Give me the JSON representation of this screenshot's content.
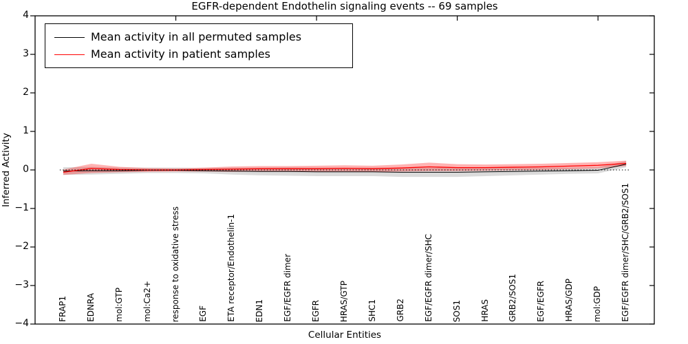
{
  "chart_data": {
    "type": "line",
    "title": "EGFR-dependent Endothelin signaling events -- 69 samples",
    "xlabel": "Cellular Entities",
    "ylabel": "Inferred Activity",
    "ylim": [
      -4,
      4
    ],
    "grid": false,
    "legend_position": "upper left",
    "zero_line": {
      "style": "dotted",
      "color": "#000000",
      "y": 0
    },
    "categories": [
      "FRAP1",
      "EDNRA",
      "mol:GTP",
      "mol:Ca2+",
      "response to oxidative stress",
      "EGF",
      "ETA receptor/Endothelin-1",
      "EDN1",
      "EGF/EGFR dimer",
      "EGFR",
      "HRAS/GTP",
      "SHC1",
      "GRB2",
      "EGF/EGFR dimer/SHC",
      "SOS1",
      "HRAS",
      "GRB2/SOS1",
      "EGF/EGFR",
      "HRAS/GDP",
      "mol:GDP",
      "EGF/EGFR dimer/SHC/GRB2/SOS1"
    ],
    "series": [
      {
        "name": "Mean activity in all permuted samples",
        "color": "#000000",
        "line_width": 1.0,
        "band_opacity": 0.14,
        "values": [
          -0.03,
          -0.02,
          -0.02,
          -0.01,
          -0.01,
          -0.02,
          -0.03,
          -0.04,
          -0.04,
          -0.05,
          -0.05,
          -0.05,
          -0.06,
          -0.06,
          -0.06,
          -0.05,
          -0.04,
          -0.03,
          -0.02,
          -0.01,
          0.15
        ],
        "band_halfwidth": [
          0.1,
          0.1,
          0.08,
          0.07,
          0.07,
          0.07,
          0.09,
          0.1,
          0.11,
          0.11,
          0.11,
          0.11,
          0.12,
          0.12,
          0.12,
          0.11,
          0.1,
          0.09,
          0.08,
          0.08,
          0.08
        ]
      },
      {
        "name": "Mean activity in patient samples",
        "color": "#ff0000",
        "line_width": 1.3,
        "band_opacity": 0.3,
        "values": [
          -0.06,
          0.04,
          0.01,
          0.0,
          0.0,
          0.01,
          0.02,
          0.03,
          0.03,
          0.03,
          0.04,
          0.03,
          0.05,
          0.08,
          0.06,
          0.06,
          0.07,
          0.08,
          0.1,
          0.12,
          0.17
        ],
        "band_halfwidth": [
          0.07,
          0.12,
          0.07,
          0.05,
          0.04,
          0.05,
          0.07,
          0.07,
          0.07,
          0.08,
          0.08,
          0.08,
          0.09,
          0.11,
          0.09,
          0.08,
          0.08,
          0.08,
          0.08,
          0.08,
          0.07
        ]
      }
    ],
    "yticks": [
      {
        "v": 4,
        "label": "4"
      },
      {
        "v": 3,
        "label": "3"
      },
      {
        "v": 2,
        "label": "2"
      },
      {
        "v": 1,
        "label": "1"
      },
      {
        "v": 0,
        "label": "0"
      },
      {
        "v": -1,
        "label": "−1"
      },
      {
        "v": -2,
        "label": "−2"
      },
      {
        "v": -3,
        "label": "−3"
      },
      {
        "v": -4,
        "label": "−4"
      }
    ],
    "xticks_top": [
      5,
      10,
      15,
      20
    ]
  }
}
